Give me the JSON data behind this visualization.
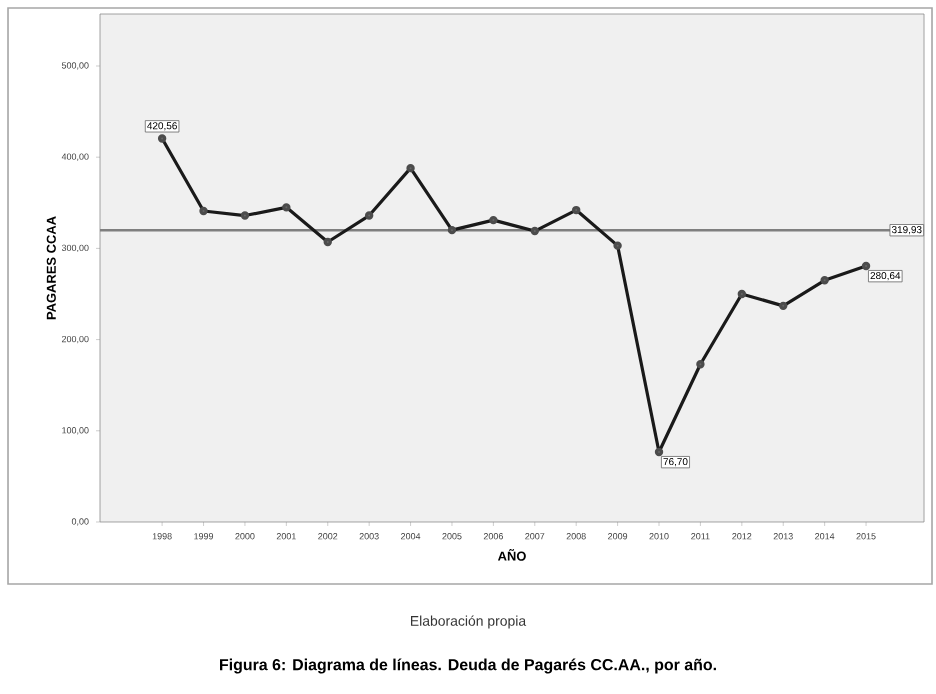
{
  "chart_data": {
    "type": "line",
    "title": "Figura 6: Diagrama de líneas. Deuda de Pagarés CC.AA., por año.",
    "xlabel": "AÑO",
    "ylabel": "PAGARES CCAA",
    "categories": [
      "1998",
      "1999",
      "2000",
      "2001",
      "2002",
      "2003",
      "2004",
      "2005",
      "2006",
      "2007",
      "2008",
      "2009",
      "2010",
      "2011",
      "2012",
      "2013",
      "2014",
      "2015"
    ],
    "values": [
      420.56,
      341,
      336,
      345,
      307,
      336,
      388,
      320,
      331,
      319,
      342,
      303,
      76.7,
      173,
      250,
      237,
      265,
      280.64
    ],
    "value_labels": [
      "420,56",
      null,
      null,
      null,
      null,
      null,
      null,
      null,
      null,
      null,
      null,
      null,
      "76,70",
      null,
      null,
      null,
      null,
      "280,64"
    ],
    "color": "#1a1a1a",
    "marker": "circle",
    "line_style": "solid",
    "ylim": [
      0,
      557
    ],
    "yticks": [
      {
        "value": 0,
        "label": "0,00"
      },
      {
        "value": 100,
        "label": "100,00"
      },
      {
        "value": 200,
        "label": "200,00"
      },
      {
        "value": 300,
        "label": "300,00"
      },
      {
        "value": 400,
        "label": "400,00"
      },
      {
        "value": 500,
        "label": "500,00"
      }
    ],
    "ref_lines": [
      {
        "axis": "y",
        "value": 319.93,
        "label": "319,93",
        "color": "#7f7f7f"
      }
    ],
    "annotations": [
      "Elaboración propia"
    ]
  }
}
